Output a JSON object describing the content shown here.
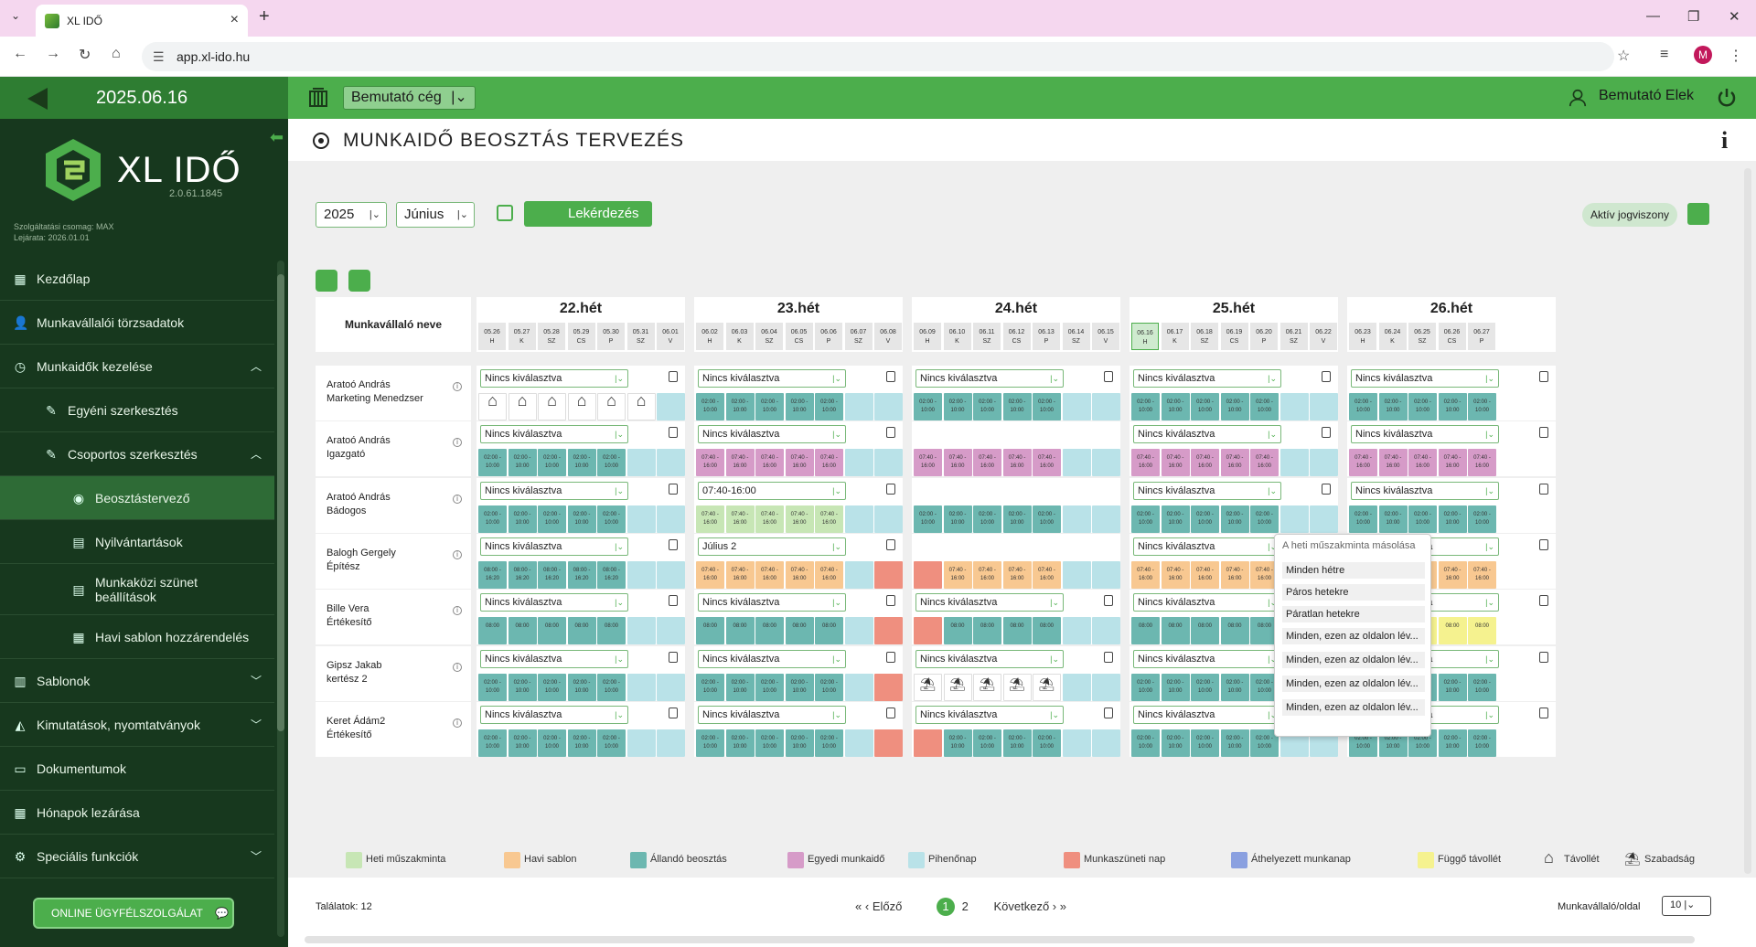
{
  "browser": {
    "tab_title": "XL IDŐ",
    "url": "app.xl-ido.hu",
    "profile_initial": "M"
  },
  "header": {
    "date": "2025.06.16",
    "company": "Bemutató cég",
    "user": "Bemutató Elek"
  },
  "sidebar": {
    "logo_text": "XL IDŐ",
    "version": "2.0.61.1845",
    "package_line1": "Szolgáltatási csomag: MAX",
    "package_line2": "Lejárata: 2026.01.01",
    "items": [
      {
        "label": "Kezdőlap"
      },
      {
        "label": "Munkavállalói törzsadatok"
      },
      {
        "label": "Munkaidők kezelése"
      },
      {
        "label": "Egyéni szerkesztés"
      },
      {
        "label": "Csoportos szerkesztés"
      },
      {
        "label": "Beosztástervező"
      },
      {
        "label": "Nyilvántartások"
      },
      {
        "label": "Munkaközi szünet beállítások"
      },
      {
        "label": "Havi sablon hozzárendelés"
      },
      {
        "label": "Sablonok"
      },
      {
        "label": "Kimutatások, nyomtatványok"
      },
      {
        "label": "Dokumentumok"
      },
      {
        "label": "Hónapok lezárása"
      },
      {
        "label": "Speciális funkciók"
      }
    ],
    "online_btn": "ONLINE ÜGYFÉLSZOLGÁLAT"
  },
  "page": {
    "title": "MUNKAIDŐ BEOSZTÁS TERVEZÉS",
    "year": "2025",
    "month": "Június",
    "query_btn": "Lekérdezés",
    "aktiv": "Aktív jogviszony",
    "name_header": "Munkavállaló neve"
  },
  "weeks": [
    {
      "title": "22.hét",
      "days": [
        [
          "05.26",
          "H"
        ],
        [
          "05.27",
          "K"
        ],
        [
          "05.28",
          "SZ"
        ],
        [
          "05.29",
          "CS"
        ],
        [
          "05.30",
          "P"
        ],
        [
          "05.31",
          "SZ"
        ],
        [
          "06.01",
          "V"
        ]
      ]
    },
    {
      "title": "23.hét",
      "days": [
        [
          "06.02",
          "H"
        ],
        [
          "06.03",
          "K"
        ],
        [
          "06.04",
          "SZ"
        ],
        [
          "06.05",
          "CS"
        ],
        [
          "06.06",
          "P"
        ],
        [
          "06.07",
          "SZ"
        ],
        [
          "06.08",
          "V"
        ]
      ]
    },
    {
      "title": "24.hét",
      "days": [
        [
          "06.09",
          "H"
        ],
        [
          "06.10",
          "K"
        ],
        [
          "06.11",
          "SZ"
        ],
        [
          "06.12",
          "CS"
        ],
        [
          "06.13",
          "P"
        ],
        [
          "06.14",
          "SZ"
        ],
        [
          "06.15",
          "V"
        ]
      ]
    },
    {
      "title": "25.hét",
      "days": [
        [
          "06.16",
          "H"
        ],
        [
          "06.17",
          "K"
        ],
        [
          "06.18",
          "SZ"
        ],
        [
          "06.19",
          "CS"
        ],
        [
          "06.20",
          "P"
        ],
        [
          "06.21",
          "SZ"
        ],
        [
          "06.22",
          "V"
        ]
      ]
    },
    {
      "title": "26.hét",
      "days": [
        [
          "06.23",
          "H"
        ],
        [
          "06.24",
          "K"
        ],
        [
          "06.25",
          "SZ"
        ],
        [
          "06.26",
          "CS"
        ],
        [
          "06.27",
          "P"
        ]
      ]
    }
  ],
  "employees": [
    {
      "name": "Aratoó András",
      "role": "Marketing Menedzser",
      "selects": [
        "Nincs kiválasztva",
        "Nincs kiválasztva",
        "Nincs kiválasztva",
        "Nincs kiválasztva",
        "Nincs kiválasztva"
      ]
    },
    {
      "name": "Aratoó András",
      "role": "Igazgató",
      "selects": [
        "Nincs kiválasztva",
        "Nincs kiválasztva",
        "",
        "Nincs kiválasztva",
        "Nincs kiválasztva"
      ]
    },
    {
      "name": "Aratoó András",
      "role": "Bádogos",
      "selects": [
        "Nincs kiválasztva",
        "07:40-16:00",
        "",
        "Nincs kiválasztva",
        "Nincs kiválasztva"
      ]
    },
    {
      "name": "Balogh Gergely",
      "role": "Építész",
      "selects": [
        "Nincs kiválasztva",
        "Július 2",
        "",
        "Nincs kiválasztva",
        "Nincs kiválasztva"
      ]
    },
    {
      "name": "Bille Vera",
      "role": "Értékesítő",
      "selects": [
        "Nincs kiválasztva",
        "Nincs kiválasztva",
        "Nincs kiválasztva",
        "Nincs kiválasztva",
        "Nincs kiválasztva"
      ]
    },
    {
      "name": "Gipsz Jakab",
      "role": "kertész 2",
      "selects": [
        "Nincs kiválasztva",
        "Nincs kiválasztva",
        "Nincs kiválasztva",
        "Nincs kiválasztva",
        "Nincs kiválasztva"
      ]
    },
    {
      "name": "Keret Ádám2",
      "role": "Értékesítő",
      "selects": [
        "Nincs kiválasztva",
        "Nincs kiválasztva",
        "Nincs kiválasztva",
        "Nincs kiválasztva",
        "Nincs kiválasztva"
      ]
    }
  ],
  "times": {
    "t0210": "02:00 - 10:00",
    "t0740": "07:40 - 16:00",
    "t0816": "08:00 - 16:20",
    "t08": "08:00"
  },
  "menu": {
    "header": "A heti műszakminta másolása",
    "items": [
      "Minden hétre",
      "Páros hetekre",
      "Páratlan hetekre",
      "Minden, ezen az oldalon lév...",
      "Minden, ezen az oldalon lév...",
      "Minden, ezen az oldalon lév...",
      "Minden, ezen az oldalon lév..."
    ]
  },
  "legend": [
    {
      "label": "Heti műszakminta",
      "color": "#c7e6b5"
    },
    {
      "label": "Havi sablon",
      "color": "#f8c891"
    },
    {
      "label": "Állandó beosztás",
      "color": "#6cb7b0"
    },
    {
      "label": "Egyedi munkaidő",
      "color": "#d69bc8"
    },
    {
      "label": "Pihenőnap",
      "color": "#b9e2e8"
    },
    {
      "label": "Munkaszüneti nap",
      "color": "#ef8f7f"
    },
    {
      "label": "Áthelyezett munkanap",
      "color": "#8aa0e0"
    },
    {
      "label": "Függő távollét",
      "color": "#f5f28f"
    },
    {
      "label": "Távollét",
      "icon": "house-icon"
    },
    {
      "label": "Szabadság",
      "icon": "beach-icon"
    }
  ],
  "footer": {
    "total": "Találatok: 12",
    "prev": "Előző",
    "page1": "1",
    "page2": "2",
    "next": "Következő",
    "per_page_label": "Munkavállaló/oldal",
    "per_page": "10"
  }
}
